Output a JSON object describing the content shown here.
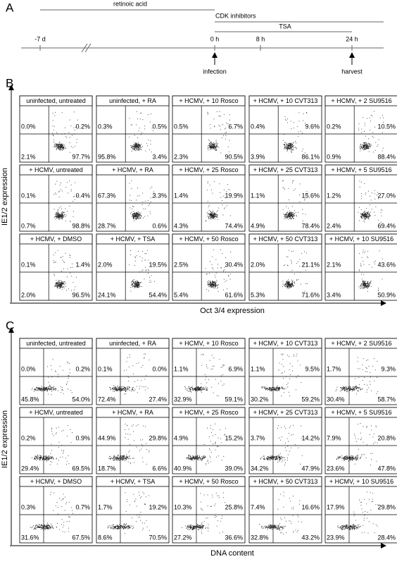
{
  "panel_a": {
    "label": "A",
    "treatments": [
      "retinoic acid",
      "CDK inhibitors",
      "TSA"
    ],
    "timepoints": [
      "-7 d",
      "0 h",
      "8 h",
      "24 h"
    ],
    "events": [
      "infection",
      "harvest"
    ]
  },
  "panel_b": {
    "label": "B",
    "y_axis": "IE1/2 expression",
    "x_axis": "Oct 3/4 expression",
    "plots": [
      {
        "title": "uninfected, untreated",
        "quadrants": [
          "0.0%",
          "0.2%",
          "2.1%",
          "97.7%"
        ]
      },
      {
        "title": "uninfected, + RA",
        "quadrants": [
          "0.3%",
          "0.5%",
          "95.8%",
          "3.4%"
        ]
      },
      {
        "title": "+ HCMV, + 10 Rosco",
        "quadrants": [
          "0.5%",
          "6.7%",
          "2.3%",
          "90.5%"
        ]
      },
      {
        "title": "+ HCMV, + 10 CVT313",
        "quadrants": [
          "0.4%",
          "9.6%",
          "3.9%",
          "86.1%"
        ]
      },
      {
        "title": "+ HCMV, + 2 SU9516",
        "quadrants": [
          "0.2%",
          "10.5%",
          "0.9%",
          "88.4%"
        ]
      },
      {
        "title": "+ HCMV, untreated",
        "quadrants": [
          "0.1%",
          "0.4%",
          "0.7%",
          "98.8%"
        ]
      },
      {
        "title": "+ HCMV, + RA",
        "quadrants": [
          "67.3%",
          "3.3%",
          "28.7%",
          "0.6%"
        ]
      },
      {
        "title": "+ HCMV, + 25 Rosco",
        "quadrants": [
          "1.4%",
          "19.9%",
          "4.3%",
          "74.4%"
        ]
      },
      {
        "title": "+ HCMV, + 25 CVT313",
        "quadrants": [
          "1.1%",
          "15.6%",
          "4.9%",
          "78.4%"
        ]
      },
      {
        "title": "+ HCMV, + 5 SU9516",
        "quadrants": [
          "1.2%",
          "27.0%",
          "2.4%",
          "69.4%"
        ]
      },
      {
        "title": "+ HCMV, + DMSO",
        "quadrants": [
          "0.1%",
          "1.4%",
          "2.0%",
          "96.5%"
        ]
      },
      {
        "title": "+ HCMV, + TSA",
        "quadrants": [
          "2.0%",
          "19.5%",
          "24.1%",
          "54.4%"
        ]
      },
      {
        "title": "+ HCMV, + 50 Rosco",
        "quadrants": [
          "2.5%",
          "30.4%",
          "5.4%",
          "61.6%"
        ]
      },
      {
        "title": "+ HCMV, + 50 CVT313",
        "quadrants": [
          "2.0%",
          "21.1%",
          "5.3%",
          "71.6%"
        ]
      },
      {
        "title": "+ HCMV, + 10 SU9516",
        "quadrants": [
          "2.1%",
          "43.6%",
          "3.4%",
          "50.9%"
        ]
      }
    ]
  },
  "panel_c": {
    "label": "C",
    "y_axis": "IE1/2 expression",
    "x_axis": "DNA content",
    "plots": [
      {
        "title": "uninfected, untreated",
        "quadrants": [
          "0.0%",
          "0.2%",
          "45.8%",
          "54.0%"
        ]
      },
      {
        "title": "uninfected, + RA",
        "quadrants": [
          "0.1%",
          "0.0%",
          "72.4%",
          "27.4%"
        ]
      },
      {
        "title": "+ HCMV, + 10 Rosco",
        "quadrants": [
          "1.1%",
          "6.9%",
          "32.9%",
          "59.1%"
        ]
      },
      {
        "title": "+ HCMV, + 10 CVT313",
        "quadrants": [
          "1.1%",
          "9.5%",
          "30.2%",
          "59.2%"
        ]
      },
      {
        "title": "+ HCMV, + 2 SU9516",
        "quadrants": [
          "1.7%",
          "9.3%",
          "30.4%",
          "58.7%"
        ]
      },
      {
        "title": "+ HCMV, untreated",
        "quadrants": [
          "0.2%",
          "0.9%",
          "29.4%",
          "69.5%"
        ]
      },
      {
        "title": "+ HCMV, + RA",
        "quadrants": [
          "44.9%",
          "29.8%",
          "18.7%",
          "6.6%"
        ]
      },
      {
        "title": "+ HCMV, + 25 Rosco",
        "quadrants": [
          "4.9%",
          "15.2%",
          "40.9%",
          "39.0%"
        ]
      },
      {
        "title": "+ HCMV, + 25 CVT313",
        "quadrants": [
          "3.7%",
          "14.2%",
          "34.2%",
          "47.9%"
        ]
      },
      {
        "title": "+ HCMV, + 5 SU9516",
        "quadrants": [
          "7.9%",
          "20.8%",
          "23.6%",
          "47.8%"
        ]
      },
      {
        "title": "+ HCMV, + DMSO",
        "quadrants": [
          "0.3%",
          "0.7%",
          "31.6%",
          "67.5%"
        ]
      },
      {
        "title": "+ HCMV, + TSA",
        "quadrants": [
          "1.7%",
          "19.2%",
          "8.6%",
          "70.5%"
        ]
      },
      {
        "title": "+ HCMV, + 50 Rosco",
        "quadrants": [
          "10.3%",
          "25.8%",
          "27.2%",
          "36.6%"
        ]
      },
      {
        "title": "+ HCMV, + 50 CVT313",
        "quadrants": [
          "7.4%",
          "16.6%",
          "32.8%",
          "43.2%"
        ]
      },
      {
        "title": "+ HCMV, + 10 SU9516",
        "quadrants": [
          "17.9%",
          "29.8%",
          "23.9%",
          "28.4%"
        ]
      }
    ]
  }
}
